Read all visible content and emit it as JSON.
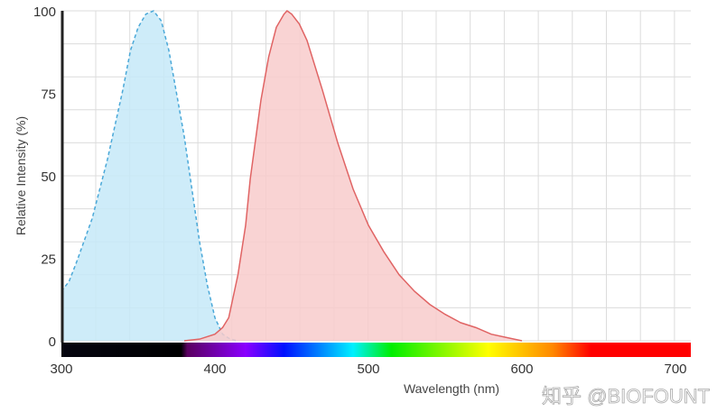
{
  "chart_data": {
    "type": "area",
    "title": "",
    "xlabel": "Wavelength (nm)",
    "ylabel": "Relative Intensity (%)",
    "xlim": [
      300,
      710
    ],
    "ylim": [
      0,
      100
    ],
    "xticks": [
      300,
      400,
      500,
      600,
      700
    ],
    "yticks": [
      0,
      25,
      50,
      75,
      100
    ],
    "grid": true,
    "series": [
      {
        "style": "dashed",
        "stroke": "#4aa8d8",
        "fill": "#c6e9f8",
        "x": [
          300,
          305,
          310,
          320,
          330,
          340,
          345,
          350,
          355,
          360,
          365,
          370,
          375,
          380,
          385,
          390,
          395,
          400,
          405,
          410,
          415
        ],
        "y": [
          15,
          18,
          24,
          37,
          55,
          76,
          88,
          95,
          99,
          100,
          97,
          88,
          75,
          62,
          46,
          30,
          17,
          7,
          2,
          0.5,
          0
        ]
      },
      {
        "style": "solid",
        "stroke": "#e06464",
        "fill": "#f8cbcb",
        "x": [
          380,
          390,
          400,
          405,
          409,
          415,
          420,
          423,
          430,
          435,
          440,
          445,
          447,
          450,
          455,
          460,
          470,
          480,
          490,
          500,
          510,
          520,
          530,
          540,
          550,
          560,
          570,
          580,
          590,
          600
        ],
        "y": [
          0,
          0.5,
          2,
          4,
          7,
          20,
          35,
          49,
          73,
          86,
          95,
          99,
          100,
          99,
          96,
          91,
          76,
          60,
          46,
          35,
          27,
          20,
          15,
          11,
          8,
          5.5,
          4,
          2,
          1,
          0
        ]
      }
    ],
    "spectrum_bar": {
      "stops": [
        {
          "nm": 300,
          "color": "#050510"
        },
        {
          "nm": 378,
          "color": "#000000"
        },
        {
          "nm": 382,
          "color": "#5a0060"
        },
        {
          "nm": 420,
          "color": "#8a00ff"
        },
        {
          "nm": 445,
          "color": "#0010ff"
        },
        {
          "nm": 490,
          "color": "#00f0ff"
        },
        {
          "nm": 515,
          "color": "#00ee00"
        },
        {
          "nm": 578,
          "color": "#ffff00"
        },
        {
          "nm": 620,
          "color": "#ff8800"
        },
        {
          "nm": 645,
          "color": "#ff0000"
        },
        {
          "nm": 710,
          "color": "#ff0000"
        }
      ]
    },
    "watermark": "知乎 @BIOFOUNT"
  }
}
